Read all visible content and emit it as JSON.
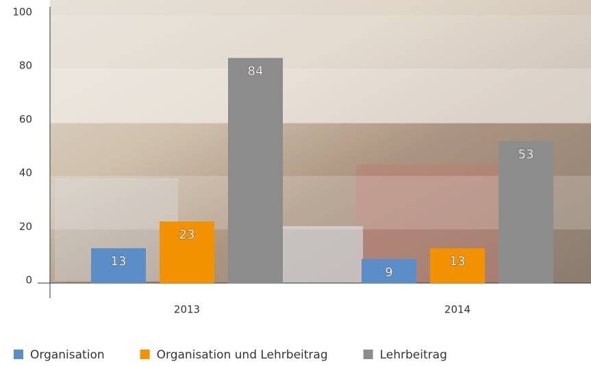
{
  "chart_data": {
    "type": "bar",
    "categories": [
      "2013",
      "2014"
    ],
    "series": [
      {
        "name": "Organisation",
        "color": "#5b8ec6",
        "values": [
          13,
          9
        ]
      },
      {
        "name": "Organisation und Lehrbeitrag",
        "color": "#f39200",
        "values": [
          23,
          13
        ]
      },
      {
        "name": "Lehrbeitrag",
        "color": "#8c8c8c",
        "values": [
          84,
          53
        ]
      }
    ],
    "ylim": [
      0,
      100
    ],
    "yticks": [
      0,
      20,
      40,
      60,
      80,
      100
    ],
    "grid": true,
    "legend": "bottom"
  }
}
